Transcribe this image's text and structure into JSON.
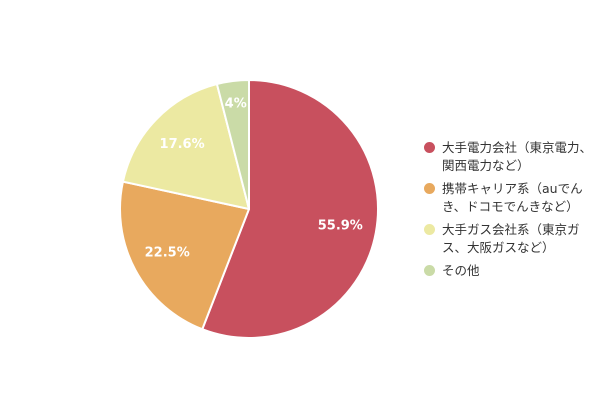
{
  "chart_data": {
    "type": "pie",
    "title": "",
    "start_angle_deg": 0,
    "direction": "clockwise",
    "legend_position": "right",
    "colors": {
      "slice_border": "#ffffff",
      "value_label": "#ffffff",
      "legend_text": "#333333",
      "background": "#ffffff"
    },
    "slices": [
      {
        "label": "大手電力会社（東京電力、関西電力など）",
        "value": 55.9,
        "display": "55.9%",
        "color": "#c8505e"
      },
      {
        "label": "携帯キャリア系（auでんき、ドコモでんきなど）",
        "value": 22.5,
        "display": "22.5%",
        "color": "#e8a95e"
      },
      {
        "label": "大手ガス会社系（東京ガス、大阪ガスなど）",
        "value": 17.6,
        "display": "17.6%",
        "color": "#ece9a2"
      },
      {
        "label": "その他",
        "value": 4,
        "display": "4%",
        "color": "#cadba7"
      }
    ]
  }
}
